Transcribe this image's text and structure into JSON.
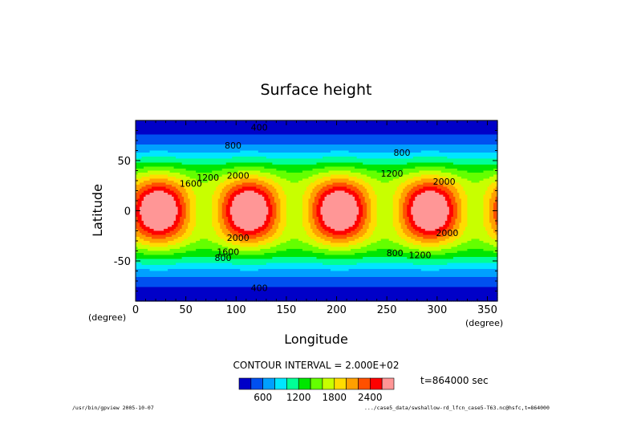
{
  "chart_data": {
    "type": "heatmap",
    "title": "Surface height",
    "xlabel": "Longitude",
    "ylabel": "Latitude",
    "x_unit": "(degree)",
    "y_unit": "(degree)",
    "xlim": [
      0,
      360
    ],
    "ylim": [
      -90,
      90
    ],
    "x_ticks": [
      0,
      50,
      100,
      150,
      200,
      250,
      300,
      350
    ],
    "y_ticks": [
      -50,
      0,
      50
    ],
    "contour_interval_text": "CONTOUR INTERVAL = 2.000E+02",
    "time_text": "t=864000 sec",
    "contour_labels": [
      {
        "text": "400",
        "lon": 123,
        "lat": 80
      },
      {
        "text": "400",
        "lon": 123,
        "lat": -80
      },
      {
        "text": "800",
        "lon": 97,
        "lat": 62
      },
      {
        "text": "1200",
        "lon": 72,
        "lat": 30
      },
      {
        "text": "1600",
        "lon": 55,
        "lat": 24
      },
      {
        "text": "2000",
        "lon": 102,
        "lat": 32
      },
      {
        "text": "2000",
        "lon": 102,
        "lat": -30
      },
      {
        "text": "1600",
        "lon": 92,
        "lat": -44
      },
      {
        "text": "800",
        "lon": 87,
        "lat": -50
      },
      {
        "text": "800",
        "lon": 265,
        "lat": 55
      },
      {
        "text": "1200",
        "lon": 255,
        "lat": 34
      },
      {
        "text": "2000",
        "lon": 307,
        "lat": 26
      },
      {
        "text": "2000",
        "lon": 310,
        "lat": -25
      },
      {
        "text": "1200",
        "lon": 283,
        "lat": -47
      },
      {
        "text": "800",
        "lon": 258,
        "lat": -45
      }
    ],
    "colorbar": {
      "tick_labels": [
        "600",
        "1200",
        "1800",
        "2400"
      ],
      "tick_values": [
        600,
        1200,
        1800,
        2400
      ],
      "levels": [
        200,
        400,
        600,
        800,
        1000,
        1200,
        1400,
        1600,
        1800,
        2000,
        2200,
        2400,
        2600
      ],
      "colors": [
        "#0000c8",
        "#0050f0",
        "#00a0ff",
        "#00e6ff",
        "#00ff96",
        "#00e600",
        "#64ff00",
        "#c8ff00",
        "#ffdc00",
        "#ffa000",
        "#ff5000",
        "#ff0000",
        "#ff9696"
      ]
    }
  },
  "footer": {
    "left": "/usr/bin/gpview  2005-10-07",
    "right": ".../case5_data/swshallow-rd_lfcn_case5-T63.nc@hsfc,t=864000"
  }
}
